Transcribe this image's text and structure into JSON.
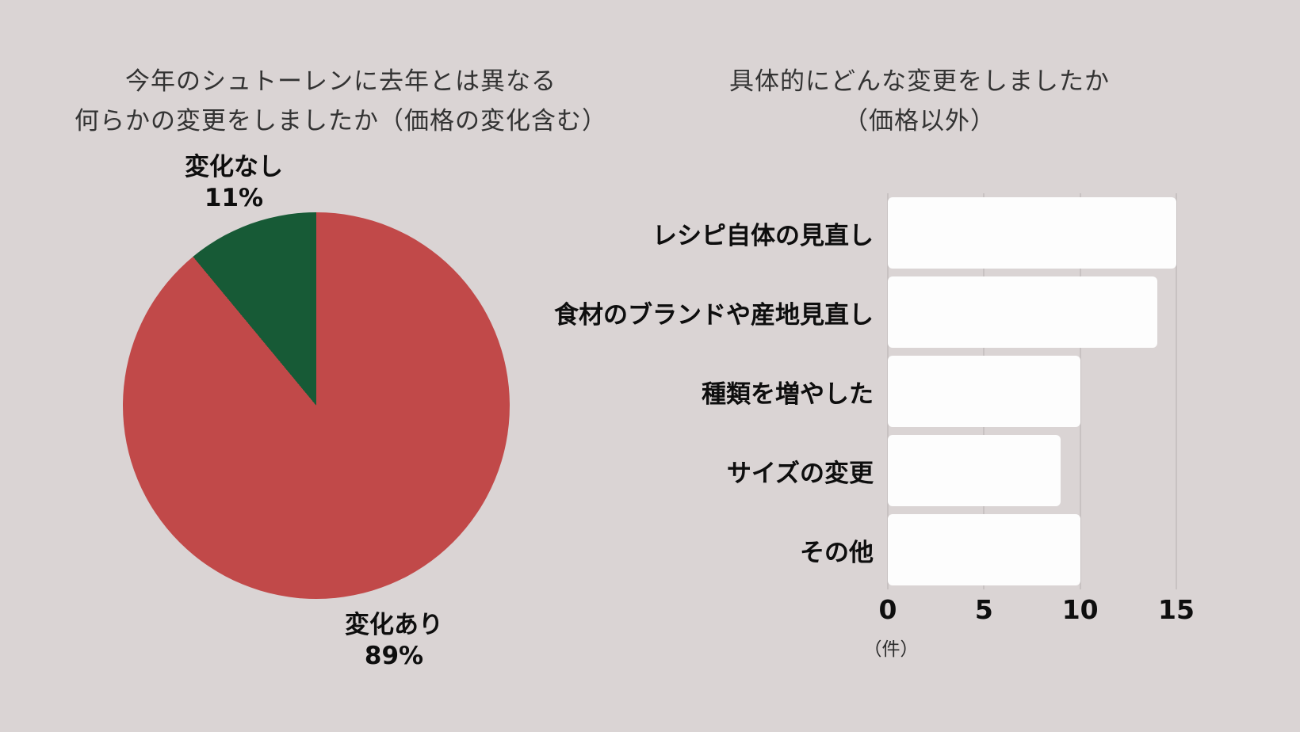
{
  "colors": {
    "background": "#dad4d4",
    "pie_change": "#c14949",
    "pie_no_change": "#175a36",
    "bar_fill": "#fdfdfd",
    "gridline": "#c8c2c2",
    "title_text": "#333333",
    "label_text": "#0e0e0e"
  },
  "pie_chart": {
    "title_line1": "今年のシュトーレンに去年とは異なる",
    "title_line2": "何らかの変更をしましたか（価格の変化含む）",
    "label_no_change": "変化なし",
    "value_no_change": "11%",
    "label_change": "変化あり",
    "value_change": "89%"
  },
  "bar_chart": {
    "title_line1": "具体的にどんな変更をしましたか",
    "title_line2": "（価格以外）",
    "rows": [
      {
        "label": "レシピ自体の見直し",
        "value": 15
      },
      {
        "label": "食材のブランドや産地見直し",
        "value": 14
      },
      {
        "label": "種類を増やした",
        "value": 10
      },
      {
        "label": "サイズの変更",
        "value": 9
      },
      {
        "label": "その他",
        "value": 10
      }
    ],
    "ticks": [
      "0",
      "5",
      "10",
      "15"
    ],
    "unit_label": "（件）"
  },
  "chart_data": [
    {
      "type": "pie",
      "title": "今年のシュトーレンに去年とは異なる何らかの変更をしましたか（価格の変化含む）",
      "labels": [
        "変化あり",
        "変化なし"
      ],
      "values": [
        89,
        11
      ],
      "unit": "%",
      "colors": [
        "#c14949",
        "#175a36"
      ],
      "start_angle_deg": 0,
      "direction": "clockwise",
      "legend": "none"
    },
    {
      "type": "bar",
      "orientation": "horizontal",
      "title": "具体的にどんな変更をしましたか（価格以外）",
      "categories": [
        "レシピ自体の見直し",
        "食材のブランドや産地見直し",
        "種類を増やした",
        "サイズの変更",
        "その他"
      ],
      "values": [
        15,
        14,
        10,
        9,
        10
      ],
      "xlabel": "（件）",
      "xlim": [
        0,
        15
      ],
      "xticks": [
        0,
        5,
        10,
        15
      ],
      "grid": true,
      "legend": "none",
      "bar_color": "#fdfdfd"
    }
  ]
}
